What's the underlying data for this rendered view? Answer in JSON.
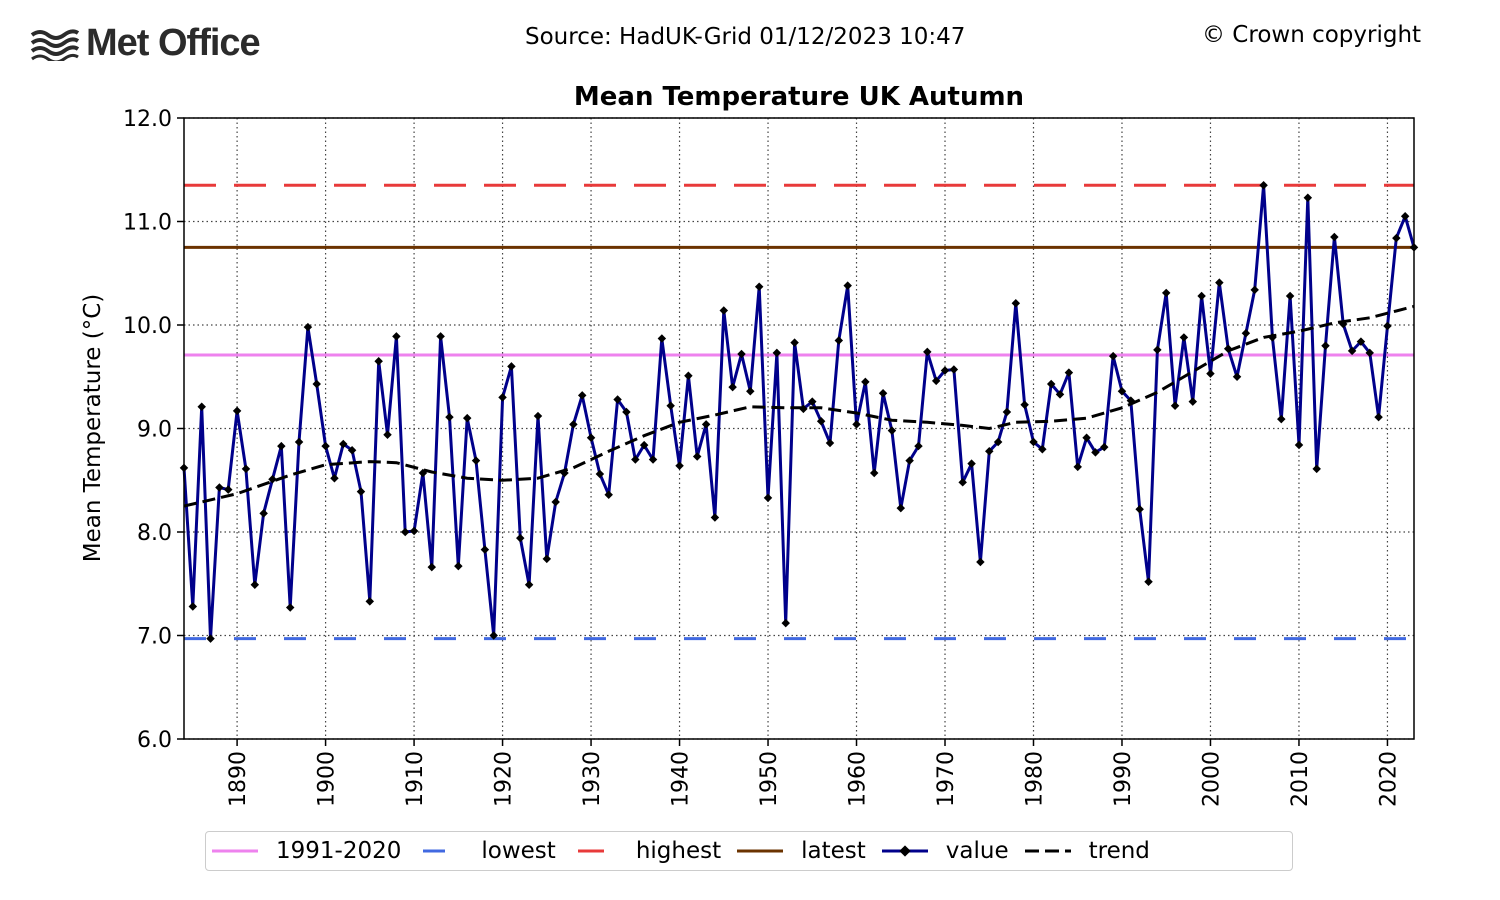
{
  "header": {
    "logo_text": "Met Office",
    "source": "Source: HadUK-Grid 01/12/2023 10:47",
    "copyright": "© Crown copyright"
  },
  "colors": {
    "value": "#00008b",
    "trend": "#000000",
    "baseline": "#ee82ee",
    "lowest": "#4169e1",
    "highest": "#e83a3a",
    "latest": "#6b3300"
  },
  "chart_data": {
    "type": "line",
    "title": "Mean Temperature UK Autumn",
    "xlabel": "",
    "ylabel": "Mean Temperature (°C)",
    "xlim": [
      1884,
      2023
    ],
    "ylim": [
      6.0,
      12.0
    ],
    "yticks": [
      6.0,
      7.0,
      8.0,
      9.0,
      10.0,
      11.0,
      12.0
    ],
    "ytick_labels": [
      "6.0",
      "7.0",
      "8.0",
      "9.0",
      "10.0",
      "11.0",
      "12.0"
    ],
    "xticks": [
      1890,
      1900,
      1910,
      1920,
      1930,
      1940,
      1950,
      1960,
      1970,
      1980,
      1990,
      2000,
      2010,
      2020
    ],
    "xtick_labels": [
      "1890",
      "1900",
      "1910",
      "1920",
      "1930",
      "1940",
      "1950",
      "1960",
      "1970",
      "1980",
      "1990",
      "2000",
      "2010",
      "2020"
    ],
    "grid": true,
    "reference_lines": [
      {
        "name": "1991-2020",
        "value": 9.71
      },
      {
        "name": "lowest",
        "value": 6.97
      },
      {
        "name": "highest",
        "value": 11.35
      },
      {
        "name": "latest",
        "value": 10.75
      }
    ],
    "series": [
      {
        "name": "value",
        "start_year": 1884,
        "values": [
          8.62,
          7.28,
          9.21,
          6.97,
          8.43,
          8.41,
          9.17,
          8.61,
          7.49,
          8.18,
          8.51,
          8.83,
          7.27,
          8.87,
          9.98,
          9.43,
          8.83,
          8.52,
          8.85,
          8.79,
          8.39,
          7.33,
          9.65,
          8.94,
          9.89,
          8.0,
          8.01,
          8.57,
          7.66,
          9.89,
          9.11,
          7.67,
          9.1,
          8.69,
          7.83,
          7.0,
          9.3,
          9.6,
          7.94,
          7.49,
          9.12,
          7.74,
          8.29,
          8.57,
          9.04,
          9.32,
          8.91,
          8.56,
          8.36,
          9.28,
          9.16,
          8.7,
          8.84,
          8.7,
          9.87,
          9.22,
          8.64,
          9.51,
          8.73,
          9.04,
          8.14,
          10.14,
          9.4,
          9.72,
          9.36,
          10.37,
          8.33,
          9.73,
          7.12,
          9.83,
          9.19,
          9.26,
          9.07,
          8.86,
          9.85,
          10.38,
          9.04,
          9.45,
          8.57,
          9.34,
          8.98,
          8.23,
          8.69,
          8.83,
          9.74,
          9.46,
          9.56,
          9.57,
          8.48,
          8.66,
          7.71,
          8.78,
          8.87,
          9.16,
          10.21,
          9.23,
          8.87,
          8.8,
          9.43,
          9.33,
          9.54,
          8.63,
          8.91,
          8.77,
          8.82,
          9.7,
          9.36,
          9.27,
          8.22,
          7.52,
          9.76,
          10.31,
          9.22,
          9.88,
          9.26,
          10.28,
          9.53,
          10.41,
          9.77,
          9.5,
          9.92,
          10.34,
          11.35,
          9.88,
          9.09,
          10.28,
          8.84,
          11.23,
          8.61,
          9.8,
          10.85,
          10.01,
          9.75,
          9.84,
          9.73,
          9.11,
          9.99,
          10.84,
          11.05,
          10.75
        ]
      },
      {
        "name": "trend",
        "x": [
          1884,
          1890,
          1896,
          1900,
          1905,
          1908,
          1912,
          1916,
          1920,
          1924,
          1928,
          1932,
          1936,
          1940,
          1944,
          1948,
          1952,
          1956,
          1960,
          1964,
          1968,
          1972,
          1975,
          1978,
          1982,
          1986,
          1990,
          1994,
          1998,
          2002,
          2006,
          2010,
          2014,
          2018,
          2023
        ],
        "values": [
          8.25,
          8.37,
          8.55,
          8.65,
          8.68,
          8.67,
          8.58,
          8.52,
          8.5,
          8.52,
          8.62,
          8.78,
          8.93,
          9.06,
          9.13,
          9.21,
          9.2,
          9.2,
          9.15,
          9.08,
          9.06,
          9.03,
          9.0,
          9.06,
          9.07,
          9.1,
          9.2,
          9.35,
          9.55,
          9.75,
          9.88,
          9.94,
          10.02,
          10.07,
          10.18
        ]
      }
    ],
    "legend": {
      "placement": "bottom",
      "entries": [
        "1991-2020",
        "lowest",
        "highest",
        "latest",
        "value",
        "trend"
      ]
    }
  }
}
